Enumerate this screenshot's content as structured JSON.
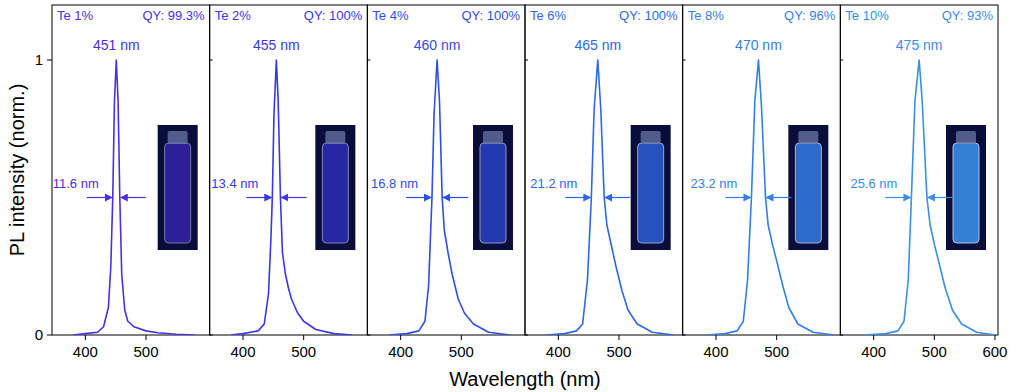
{
  "x_label": "Wavelength (nm)",
  "y_label": "PL intensity (norm.)",
  "chart_data": [
    {
      "type": "line",
      "title": "Te 1%",
      "subtitle": "QY: 99.3%",
      "color": "#4b2fe0",
      "annotations": [
        "451 nm",
        "11.6 nm"
      ],
      "x": [
        380,
        400,
        420,
        430,
        438,
        442,
        445.2,
        448,
        451,
        454,
        456.8,
        460,
        465,
        470,
        480,
        500,
        520,
        550,
        580
      ],
      "values": [
        0,
        0.005,
        0.01,
        0.03,
        0.1,
        0.25,
        0.5,
        0.85,
        1,
        0.85,
        0.5,
        0.22,
        0.09,
        0.05,
        0.03,
        0.015,
        0.008,
        0.003,
        0
      ],
      "xlim": [
        345,
        605
      ],
      "xticks": [
        400,
        500
      ],
      "ylim": [
        0,
        1.2
      ],
      "yticks": [
        0,
        1
      ]
    },
    {
      "type": "line",
      "title": "Te 2%",
      "subtitle": "QY: 100%",
      "color": "#3a36e6",
      "annotations": [
        "455 nm",
        "13.4 nm"
      ],
      "tick_labels": "x",
      "x": [
        380,
        400,
        425,
        435,
        442,
        446,
        448.3,
        451,
        455,
        458,
        461.7,
        465,
        470,
        475,
        480,
        490,
        500,
        520,
        550,
        580
      ],
      "values": [
        0,
        0.005,
        0.015,
        0.04,
        0.15,
        0.35,
        0.5,
        0.8,
        1,
        0.85,
        0.5,
        0.3,
        0.22,
        0.17,
        0.13,
        0.08,
        0.05,
        0.02,
        0.005,
        0
      ],
      "xlim": [
        345,
        605
      ],
      "xticks": [
        400,
        500
      ],
      "ylim": [
        0,
        1.2
      ],
      "yticks": [
        0,
        1
      ]
    },
    {
      "type": "line",
      "title": "Te 4%",
      "subtitle": "QY: 100%",
      "color": "#2f4ee6",
      "annotations": [
        "460 nm",
        "16.8 nm"
      ],
      "tick_labels": "x",
      "x": [
        380,
        410,
        430,
        440,
        446,
        451.6,
        455,
        460,
        464,
        468.4,
        472,
        478,
        485,
        495,
        505,
        520,
        545,
        580
      ],
      "values": [
        0,
        0.005,
        0.015,
        0.05,
        0.18,
        0.5,
        0.8,
        1,
        0.85,
        0.5,
        0.38,
        0.3,
        0.22,
        0.13,
        0.08,
        0.04,
        0.01,
        0
      ],
      "xlim": [
        345,
        605
      ],
      "xticks": [
        400,
        500
      ],
      "ylim": [
        0,
        1.2
      ],
      "yticks": [
        0,
        1
      ]
    },
    {
      "type": "line",
      "title": "Te 6%",
      "subtitle": "QY: 100%",
      "color": "#2f68e6",
      "annotations": [
        "465 nm",
        "21.2 nm"
      ],
      "tick_labels": "x",
      "x": [
        380,
        410,
        430,
        440,
        448,
        454.4,
        459,
        465,
        470,
        475.6,
        480,
        487,
        495,
        505,
        515,
        530,
        555,
        590
      ],
      "values": [
        0,
        0.005,
        0.015,
        0.04,
        0.2,
        0.5,
        0.82,
        1,
        0.82,
        0.5,
        0.4,
        0.33,
        0.25,
        0.16,
        0.09,
        0.04,
        0.01,
        0
      ],
      "xlim": [
        345,
        605
      ],
      "xticks": [
        400,
        500
      ],
      "ylim": [
        0,
        1.2
      ],
      "yticks": [
        0,
        1
      ]
    },
    {
      "type": "line",
      "title": "Te 8%",
      "subtitle": "QY: 96%",
      "color": "#337fe6",
      "annotations": [
        "470 nm",
        "23.2 nm"
      ],
      "tick_labels": "x",
      "x": [
        385,
        415,
        435,
        445,
        452,
        458.4,
        464,
        470,
        475,
        481.6,
        486,
        493,
        500,
        510,
        520,
        535,
        560,
        595
      ],
      "values": [
        0,
        0.005,
        0.015,
        0.05,
        0.2,
        0.5,
        0.85,
        1,
        0.83,
        0.5,
        0.4,
        0.33,
        0.27,
        0.18,
        0.1,
        0.04,
        0.01,
        0
      ],
      "xlim": [
        345,
        605
      ],
      "xticks": [
        400,
        500
      ],
      "ylim": [
        0,
        1.2
      ],
      "yticks": [
        0,
        1
      ]
    },
    {
      "type": "line",
      "title": "Te 10%",
      "subtitle": "QY: 93%",
      "color": "#3a8de8",
      "annotations": [
        "475 nm",
        "25.6 nm"
      ],
      "tick_labels": "x",
      "x": [
        385,
        420,
        440,
        450,
        457,
        462.2,
        468,
        475,
        480,
        487.8,
        493,
        500,
        508,
        518,
        530,
        545,
        570,
        600
      ],
      "values": [
        0,
        0.005,
        0.015,
        0.05,
        0.2,
        0.5,
        0.85,
        1,
        0.85,
        0.5,
        0.4,
        0.33,
        0.26,
        0.17,
        0.09,
        0.04,
        0.01,
        0
      ],
      "xlim": [
        345,
        605
      ],
      "xticks": [
        400,
        500,
        600
      ],
      "ylim": [
        0,
        1.2
      ],
      "yticks": [
        0,
        1
      ]
    }
  ]
}
